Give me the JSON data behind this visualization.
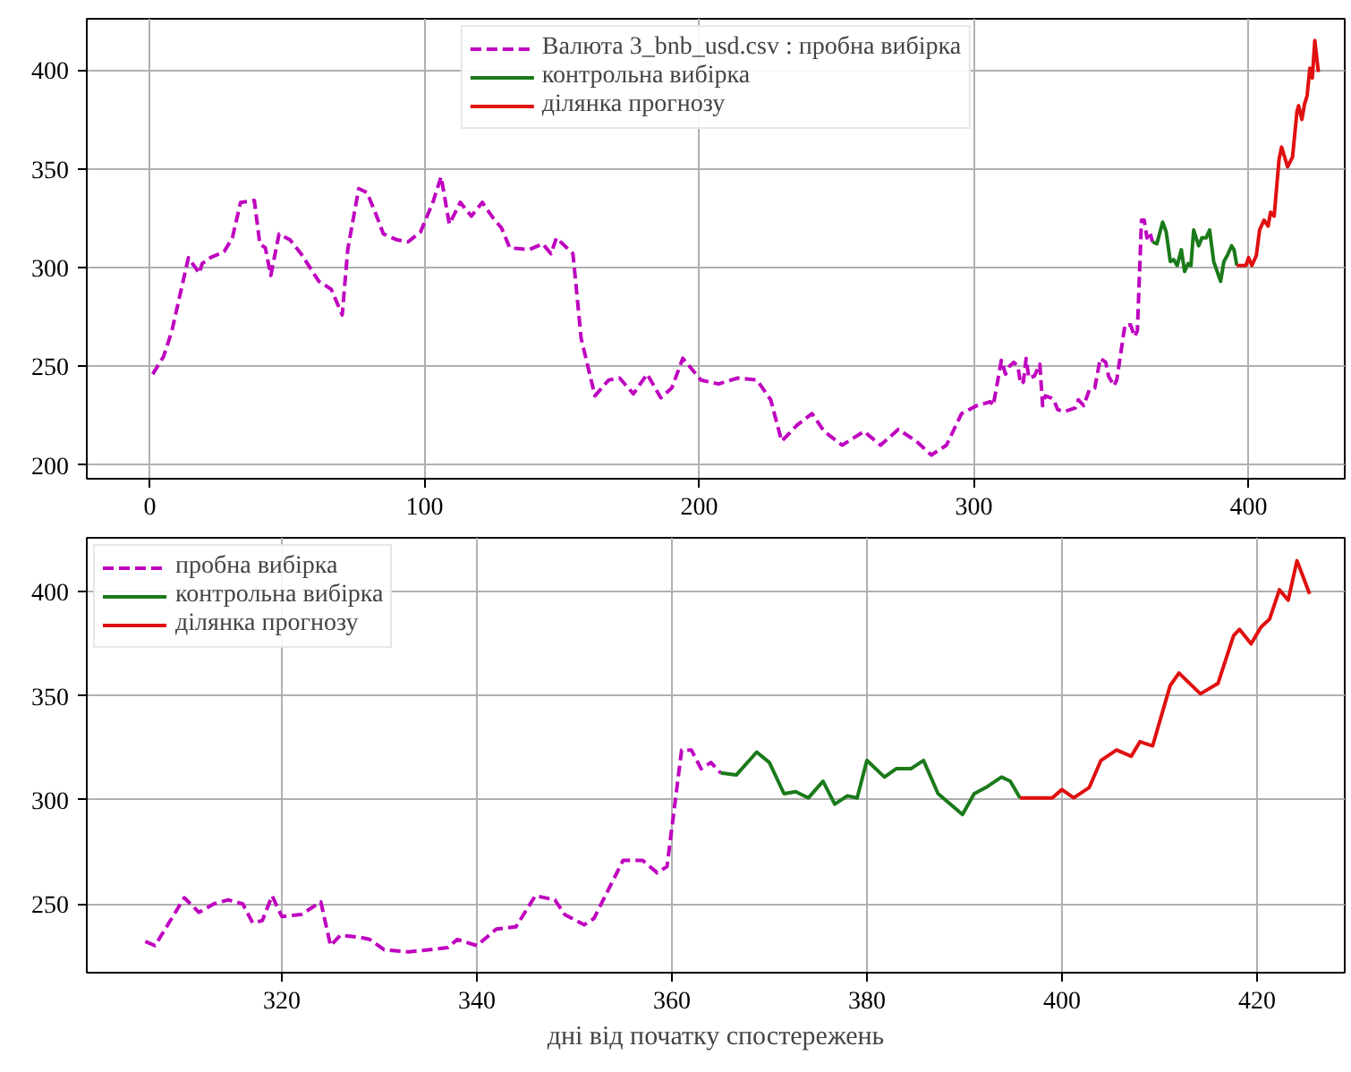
{
  "chart_data": [
    {
      "type": "line",
      "xlim": [
        -23,
        435
      ],
      "ylim": [
        193,
        426
      ],
      "xticks": [
        0,
        100,
        200,
        300,
        400
      ],
      "yticks": [
        200,
        250,
        300,
        350,
        400
      ],
      "grid": true,
      "legend": "top",
      "series": [
        {
          "name": "Валюта 3_bnb_usd.csv : пробна вибірка",
          "color": "#bf00bf",
          "line_style": "dashed",
          "x": [
            1,
            5,
            8,
            14,
            18,
            19,
            22,
            27,
            30,
            33,
            38,
            40,
            42,
            44,
            47,
            51,
            55,
            61.5,
            66,
            70,
            72,
            76,
            79,
            82,
            85,
            90,
            94,
            98.5,
            103,
            106,
            109,
            113,
            117,
            121,
            125,
            128,
            131,
            138,
            143,
            146,
            148,
            154,
            157,
            162,
            167,
            171,
            176,
            181,
            186,
            190,
            194,
            200.6,
            207,
            214,
            221,
            226,
            230,
            235.5,
            241,
            245.5,
            252,
            260,
            266,
            272.5,
            279,
            284.5,
            290,
            295.5,
            301,
            306,
            307,
            310,
            311.5,
            313,
            314.5,
            316,
            317,
            318,
            319,
            320,
            322,
            324,
            325,
            326,
            328,
            329,
            330.5,
            333,
            335,
            337,
            338,
            340,
            342,
            344,
            346,
            348,
            349,
            351,
            352,
            355,
            357,
            358.5,
            359.5,
            361,
            362,
            363,
            364,
            365
          ],
          "values": [
            246,
            255,
            268,
            305,
            297,
            302,
            305,
            308,
            315,
            333,
            334,
            312,
            310,
            296,
            317,
            314,
            307,
            293,
            289,
            276,
            309,
            340,
            338,
            328,
            317,
            314,
            313,
            318,
            333,
            346,
            322,
            333,
            326,
            333,
            325,
            320,
            310,
            309,
            312,
            307,
            315,
            307,
            264,
            235,
            243,
            244,
            236,
            246,
            234,
            239,
            254,
            243,
            241,
            244,
            243,
            233,
            212,
            220,
            226,
            217,
            210,
            217,
            210,
            218,
            212,
            205,
            210,
            226,
            230,
            232,
            230,
            253,
            246,
            250,
            252,
            250,
            241,
            242,
            254,
            244,
            245,
            251,
            230,
            235,
            234,
            233,
            228,
            227,
            228,
            229,
            233,
            230,
            238,
            239,
            254,
            252,
            245,
            240,
            243,
            271,
            271,
            265,
            268,
            324,
            324,
            315,
            318,
            313
          ]
        },
        {
          "name": "контрольна вибірка",
          "color": "#1a7a1a",
          "line_style": "solid",
          "x": [
            365,
            366.6,
            368.7,
            370,
            371.5,
            372.7,
            374,
            375.5,
            376.7,
            378,
            379,
            380,
            381.8,
            383,
            384.5,
            385.8,
            387.3,
            389.8,
            391,
            392.2,
            393.8,
            394.7,
            395.7
          ],
          "values": [
            313,
            312,
            323,
            318,
            303,
            304,
            301,
            309,
            298,
            302,
            301,
            319,
            311,
            315,
            315,
            319,
            303,
            293,
            303,
            306,
            311,
            309,
            301
          ]
        },
        {
          "name": "ділянка прогнозу",
          "color": "#e01010",
          "line_style": "solid",
          "x": [
            395.7,
            397.8,
            399,
            400,
            401.2,
            402.8,
            404,
            405.6,
            407.1,
            408,
            409.3,
            411.1,
            412,
            414.2,
            416,
            417.6,
            418.2,
            419.4,
            420.4,
            421.3,
            422.3,
            423.2,
            424.1,
            425.4
          ],
          "values": [
            301,
            301,
            301,
            305,
            301,
            306,
            319,
            324,
            321,
            328,
            326,
            355,
            361,
            351,
            356,
            379,
            382,
            375,
            383,
            387,
            401,
            396,
            415,
            399
          ]
        }
      ]
    },
    {
      "type": "line",
      "xlim": [
        300,
        429
      ],
      "ylim": [
        217,
        426
      ],
      "xticks": [
        320,
        340,
        360,
        380,
        400,
        420
      ],
      "yticks": [
        250,
        300,
        350,
        400
      ],
      "grid": true,
      "legend": "top left",
      "xlabel": "дні від початку спостережень",
      "series": [
        {
          "name": "пробна вибірка",
          "color": "#bf00bf",
          "line_style": "dashed",
          "x": [
            306,
            307,
            310,
            311.5,
            313,
            314.5,
            316,
            317,
            318,
            319,
            320,
            322,
            324,
            325,
            326,
            328,
            329,
            330.5,
            333,
            335,
            337,
            338,
            340,
            342,
            344,
            346,
            348,
            349,
            351,
            352,
            355,
            357,
            358.5,
            359.5,
            361,
            362,
            363,
            364,
            365
          ],
          "values": [
            232,
            230,
            253,
            246,
            250,
            252,
            250,
            241,
            242,
            254,
            244,
            245,
            251,
            230,
            235,
            234,
            233,
            228,
            227,
            228,
            229,
            233,
            230,
            238,
            239,
            254,
            252,
            245,
            240,
            243,
            271,
            271,
            265,
            268,
            324,
            324,
            315,
            318,
            313
          ]
        },
        {
          "name": "контрольна вибірка",
          "color": "#1a7a1a",
          "line_style": "solid",
          "x": [
            365,
            366.6,
            368.7,
            370,
            371.5,
            372.7,
            374,
            375.5,
            376.7,
            378,
            379,
            380,
            381.8,
            383,
            384.5,
            385.8,
            387.3,
            389.8,
            391,
            392.2,
            393.8,
            394.7,
            395.7
          ],
          "values": [
            313,
            312,
            323,
            318,
            303,
            304,
            301,
            309,
            298,
            302,
            301,
            319,
            311,
            315,
            315,
            319,
            303,
            293,
            303,
            306,
            311,
            309,
            301
          ]
        },
        {
          "name": "ділянка прогнозу",
          "color": "#e01010",
          "line_style": "solid",
          "x": [
            395.7,
            397.8,
            399,
            400,
            401.2,
            402.8,
            404,
            405.6,
            407.1,
            408,
            409.3,
            411.1,
            412,
            414.2,
            416,
            417.6,
            418.2,
            419.4,
            420.4,
            421.3,
            422.3,
            423.2,
            424.1,
            425.4
          ],
          "values": [
            301,
            301,
            301,
            305,
            301,
            306,
            319,
            324,
            321,
            328,
            326,
            355,
            361,
            351,
            356,
            379,
            382,
            375,
            383,
            387,
            401,
            396,
            415,
            399
          ]
        }
      ]
    }
  ]
}
